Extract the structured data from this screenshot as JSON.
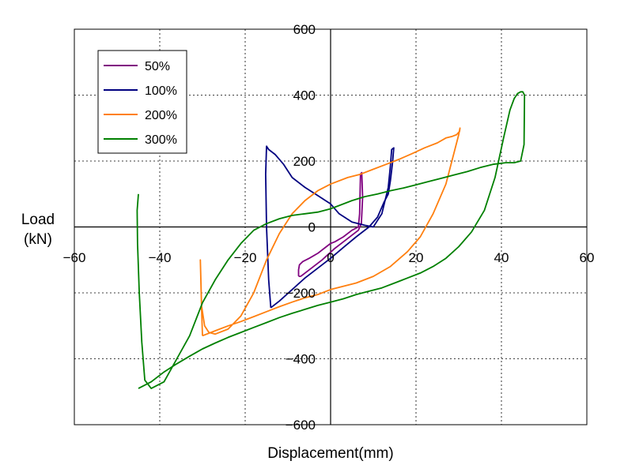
{
  "chart_data": {
    "type": "line",
    "title": "",
    "xlabel": "Displacement(mm)",
    "ylabel_line1": "Load",
    "ylabel_line2": "(kN)",
    "xlim": [
      -60,
      60
    ],
    "ylim": [
      -600,
      600
    ],
    "x_ticks": [
      -60,
      -40,
      -20,
      0,
      20,
      40,
      60
    ],
    "y_ticks": [
      -600,
      -400,
      -200,
      0,
      200,
      400,
      600
    ],
    "grid": true,
    "legend_position": "top-left",
    "series": [
      {
        "name": "50%",
        "color": "#800080",
        "x": [
          -7,
          -5,
          -2,
          1,
          3,
          5,
          6.5,
          7.2,
          7.5,
          7.3,
          7,
          6.8,
          6.5,
          5,
          3,
          1,
          0,
          -1.5,
          -3,
          -5,
          -6.5,
          -7.3,
          -7.5,
          -7.5,
          -7.3,
          -7
        ],
        "y": [
          -150,
          -130,
          -100,
          -65,
          -45,
          -25,
          -10,
          10,
          90,
          165,
          160,
          40,
          0,
          -10,
          -30,
          -45,
          -50,
          -65,
          -80,
          -95,
          -105,
          -115,
          -130,
          -148,
          -150,
          -150
        ]
      },
      {
        "name": "100%",
        "color": "#000080",
        "x": [
          -14,
          -12,
          -9,
          -6,
          -3,
          0,
          3,
          6,
          9,
          11,
          12.5,
          13.5,
          14,
          14.5,
          14.8,
          14.3,
          14,
          13.5,
          12,
          10,
          8,
          5,
          2,
          0,
          -3,
          -6,
          -9,
          -11,
          -13,
          -14.5,
          -15,
          -15.2,
          -15,
          -14.5,
          -14
        ],
        "y": [
          -245,
          -225,
          -190,
          -155,
          -125,
          -95,
          -62,
          -30,
          0,
          30,
          75,
          100,
          140,
          195,
          240,
          235,
          185,
          120,
          40,
          0,
          5,
          15,
          40,
          70,
          95,
          120,
          150,
          190,
          220,
          235,
          245,
          160,
          0,
          -160,
          -245
        ]
      },
      {
        "name": "200%",
        "color": "#ff7f0e",
        "x": [
          -30,
          -27,
          -24,
          -21,
          -18,
          -15,
          -12,
          -9,
          -6,
          -3,
          0,
          3,
          6,
          10,
          14,
          18,
          21,
          24,
          27,
          29,
          30,
          30.3,
          30.2,
          29.5,
          28.5,
          27,
          25,
          22,
          19,
          16,
          13,
          10,
          7,
          4,
          0,
          -3,
          -6,
          -9,
          -12,
          -15,
          -18,
          -21,
          -24,
          -27,
          -28.5,
          -29.5,
          -30.2,
          -30.5,
          -30.2,
          -30
        ],
        "y": [
          -330,
          -315,
          -300,
          -287,
          -272,
          -257,
          -242,
          -228,
          -215,
          -205,
          -190,
          -180,
          -170,
          -150,
          -120,
          -75,
          -30,
          40,
          130,
          230,
          280,
          300,
          290,
          280,
          275,
          270,
          255,
          240,
          222,
          205,
          190,
          175,
          160,
          150,
          130,
          110,
          80,
          40,
          -20,
          -100,
          -200,
          -270,
          -310,
          -325,
          -320,
          -300,
          -240,
          -100,
          -250,
          -330
        ]
      },
      {
        "name": "300%",
        "color": "#008000",
        "x": [
          -45,
          -42,
          -39,
          -36,
          -33,
          -30,
          -27,
          -24,
          -21,
          -18,
          -15,
          -12,
          -9,
          -6,
          -3,
          0,
          3,
          6,
          9,
          12,
          15,
          18,
          21,
          24,
          27,
          30,
          33,
          36,
          38.5,
          40.5,
          42,
          43,
          43.8,
          44.5,
          45,
          45.4,
          45.3,
          44.5,
          43,
          41,
          38,
          35,
          32,
          29,
          26,
          23,
          20,
          17,
          14,
          11,
          8,
          5,
          2,
          0,
          -3,
          -6,
          -9,
          -12,
          -15,
          -18,
          -21,
          -24,
          -27,
          -30,
          -33,
          -36,
          -39,
          -42,
          -43.5,
          -44.2,
          -44.8,
          -45.2,
          -45.3,
          -45
        ],
        "y": [
          -490,
          -470,
          -440,
          -415,
          -392,
          -370,
          -352,
          -335,
          -320,
          -305,
          -290,
          -275,
          -262,
          -250,
          -238,
          -228,
          -218,
          -205,
          -195,
          -185,
          -170,
          -155,
          -140,
          -120,
          -95,
          -60,
          -15,
          50,
          150,
          270,
          355,
          390,
          405,
          410,
          410,
          400,
          250,
          200,
          195,
          195,
          190,
          180,
          168,
          158,
          148,
          138,
          128,
          118,
          110,
          100,
          92,
          80,
          65,
          55,
          45,
          40,
          35,
          25,
          10,
          -10,
          -50,
          -100,
          -160,
          -230,
          -330,
          -400,
          -470,
          -490,
          -465,
          -350,
          -200,
          -50,
          50,
          100
        ]
      }
    ]
  }
}
